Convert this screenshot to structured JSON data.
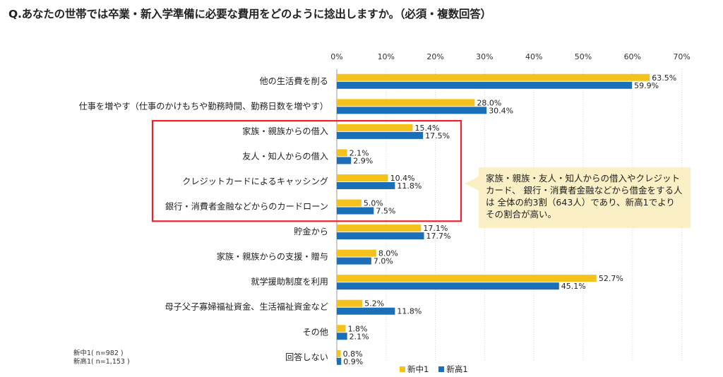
{
  "title": "Q.あなたの世帯では卒業・新入学準備に必要な費用をどのように捻出しますか。（必須・複数回答）",
  "colors": {
    "series_a": "#f5c21b",
    "series_b": "#1b6fb8",
    "highlight_box": "#e8232a",
    "callout_bg": "#fbefc6",
    "grid": "#d8d8d8"
  },
  "callout_text": "家族・親族・友人・知人からの借入やクレジットカード、 銀行・消費者金融などから借金をする人は 全体の約3割（643人）であり、新高1でよりその割合が高い。",
  "notes": [
    "新中1( n=982 )",
    "新高1( n=1,153 )"
  ],
  "chart_data": {
    "type": "bar",
    "orientation": "horizontal",
    "categories": [
      "他の生活費を削る",
      "仕事を増やす（仕事のかけもちや勤務時間、勤務日数を増やす）",
      "家族・親族からの借入",
      "友人・知人からの借入",
      "クレジットカードによるキャッシング",
      "銀行・消費者金融などからのカードローン",
      "貯金から",
      "家族・親族からの支援・贈与",
      "就学援助制度を利用",
      "母子父子寡婦福祉資金、生活福祉資金など",
      "その他",
      "回答しない"
    ],
    "series": [
      {
        "name": "新中1",
        "values": [
          63.5,
          28.0,
          15.4,
          2.1,
          10.4,
          5.0,
          17.1,
          8.0,
          52.7,
          5.2,
          1.8,
          0.8
        ]
      },
      {
        "name": "新高1",
        "values": [
          59.9,
          30.4,
          17.5,
          2.9,
          11.8,
          7.5,
          17.7,
          7.0,
          45.1,
          11.8,
          2.1,
          0.9
        ]
      }
    ],
    "x_ticks": [
      "0%",
      "10%",
      "20%",
      "30%",
      "40%",
      "50%",
      "60%",
      "70%"
    ],
    "xlim": [
      0,
      70
    ],
    "grid": true,
    "legend_position": "bottom",
    "highlighted_categories": [
      2,
      3,
      4,
      5
    ]
  }
}
